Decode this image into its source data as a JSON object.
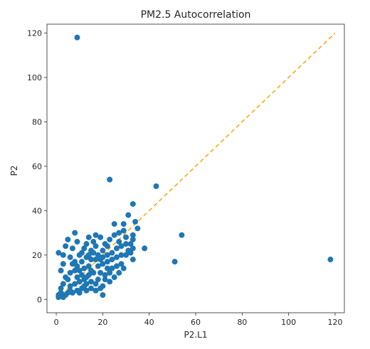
{
  "chart_data": {
    "type": "scatter",
    "title": "PM2.5 Autocorrelation",
    "xlabel": "P2.L1",
    "ylabel": "P2",
    "xlim": [
      -4,
      124
    ],
    "ylim": [
      -6,
      124
    ],
    "xticks": [
      0,
      20,
      40,
      60,
      80,
      100,
      120
    ],
    "yticks": [
      0,
      20,
      40,
      60,
      80,
      100,
      120
    ],
    "grid": false,
    "point_color": "#1f77b4",
    "reference_line": {
      "x": [
        0,
        120
      ],
      "y": [
        0,
        120
      ],
      "style": "dashed",
      "color": "#ffa500"
    },
    "points": [
      [
        9,
        118
      ],
      [
        118,
        18
      ],
      [
        23,
        54
      ],
      [
        43,
        51
      ],
      [
        51,
        17
      ],
      [
        54,
        29
      ],
      [
        33,
        43
      ],
      [
        38,
        23
      ],
      [
        31,
        38
      ],
      [
        34,
        35
      ],
      [
        35,
        32
      ],
      [
        33,
        29
      ],
      [
        33,
        27
      ],
      [
        33,
        23
      ],
      [
        32,
        21
      ],
      [
        30,
        20
      ],
      [
        33,
        18
      ],
      [
        31,
        22
      ],
      [
        30,
        28
      ],
      [
        29,
        34
      ],
      [
        27,
        30
      ],
      [
        25,
        34
      ],
      [
        23,
        27
      ],
      [
        22,
        20
      ],
      [
        26,
        23
      ],
      [
        24,
        18
      ],
      [
        28,
        16
      ],
      [
        27,
        12
      ],
      [
        25,
        10
      ],
      [
        22,
        14
      ],
      [
        21,
        9
      ],
      [
        20,
        2
      ],
      [
        19,
        5
      ],
      [
        17,
        7
      ],
      [
        15,
        5
      ],
      [
        13,
        4
      ],
      [
        11,
        5
      ],
      [
        9,
        4
      ],
      [
        7,
        3
      ],
      [
        5,
        3
      ],
      [
        4,
        2
      ],
      [
        3,
        1
      ],
      [
        2,
        3
      ],
      [
        2,
        5
      ],
      [
        1,
        2
      ],
      [
        1,
        1
      ],
      [
        3,
        7
      ],
      [
        4,
        10
      ],
      [
        2,
        13
      ],
      [
        3,
        16
      ],
      [
        3,
        20
      ],
      [
        1,
        21
      ],
      [
        4,
        24
      ],
      [
        5,
        27
      ],
      [
        8,
        30
      ],
      [
        9,
        26
      ],
      [
        7,
        23
      ],
      [
        6,
        19
      ],
      [
        7,
        16
      ],
      [
        8,
        13
      ],
      [
        9,
        10
      ],
      [
        10,
        8
      ],
      [
        11,
        11
      ],
      [
        12,
        14
      ],
      [
        11,
        17
      ],
      [
        10,
        20
      ],
      [
        12,
        23
      ],
      [
        13,
        25
      ],
      [
        14,
        28
      ],
      [
        16,
        26
      ],
      [
        17,
        24
      ],
      [
        16,
        21
      ],
      [
        15,
        18
      ],
      [
        14,
        15
      ],
      [
        16,
        12
      ],
      [
        18,
        9
      ],
      [
        19,
        12
      ],
      [
        18,
        15
      ],
      [
        19,
        18
      ],
      [
        20,
        22
      ],
      [
        21,
        25
      ],
      [
        19,
        28
      ],
      [
        17,
        29
      ],
      [
        15,
        22
      ],
      [
        13,
        19
      ],
      [
        12,
        9
      ],
      [
        14,
        11
      ],
      [
        13,
        7
      ],
      [
        10,
        13
      ],
      [
        8,
        17
      ],
      [
        6,
        12
      ],
      [
        5,
        9
      ],
      [
        6,
        6
      ],
      [
        8,
        7
      ],
      [
        9,
        15
      ],
      [
        11,
        21
      ],
      [
        14,
        20
      ],
      [
        17,
        18
      ],
      [
        20,
        16
      ],
      [
        22,
        17
      ],
      [
        24,
        21
      ],
      [
        26,
        19
      ],
      [
        28,
        24
      ],
      [
        27,
        26
      ],
      [
        30,
        25
      ],
      [
        29,
        31
      ],
      [
        25,
        29
      ],
      [
        22,
        24
      ],
      [
        20,
        19
      ],
      [
        18,
        20
      ],
      [
        15,
        13
      ],
      [
        13,
        10
      ],
      [
        21,
        11
      ],
      [
        23,
        12
      ],
      [
        24,
        14
      ],
      [
        26,
        15
      ],
      [
        28,
        20
      ],
      [
        32,
        25
      ],
      [
        29,
        14
      ],
      [
        23,
        8
      ],
      [
        20,
        6
      ],
      [
        17,
        4
      ],
      [
        15,
        8
      ],
      [
        12,
        6
      ],
      [
        10,
        3
      ],
      [
        6,
        4
      ]
    ]
  }
}
